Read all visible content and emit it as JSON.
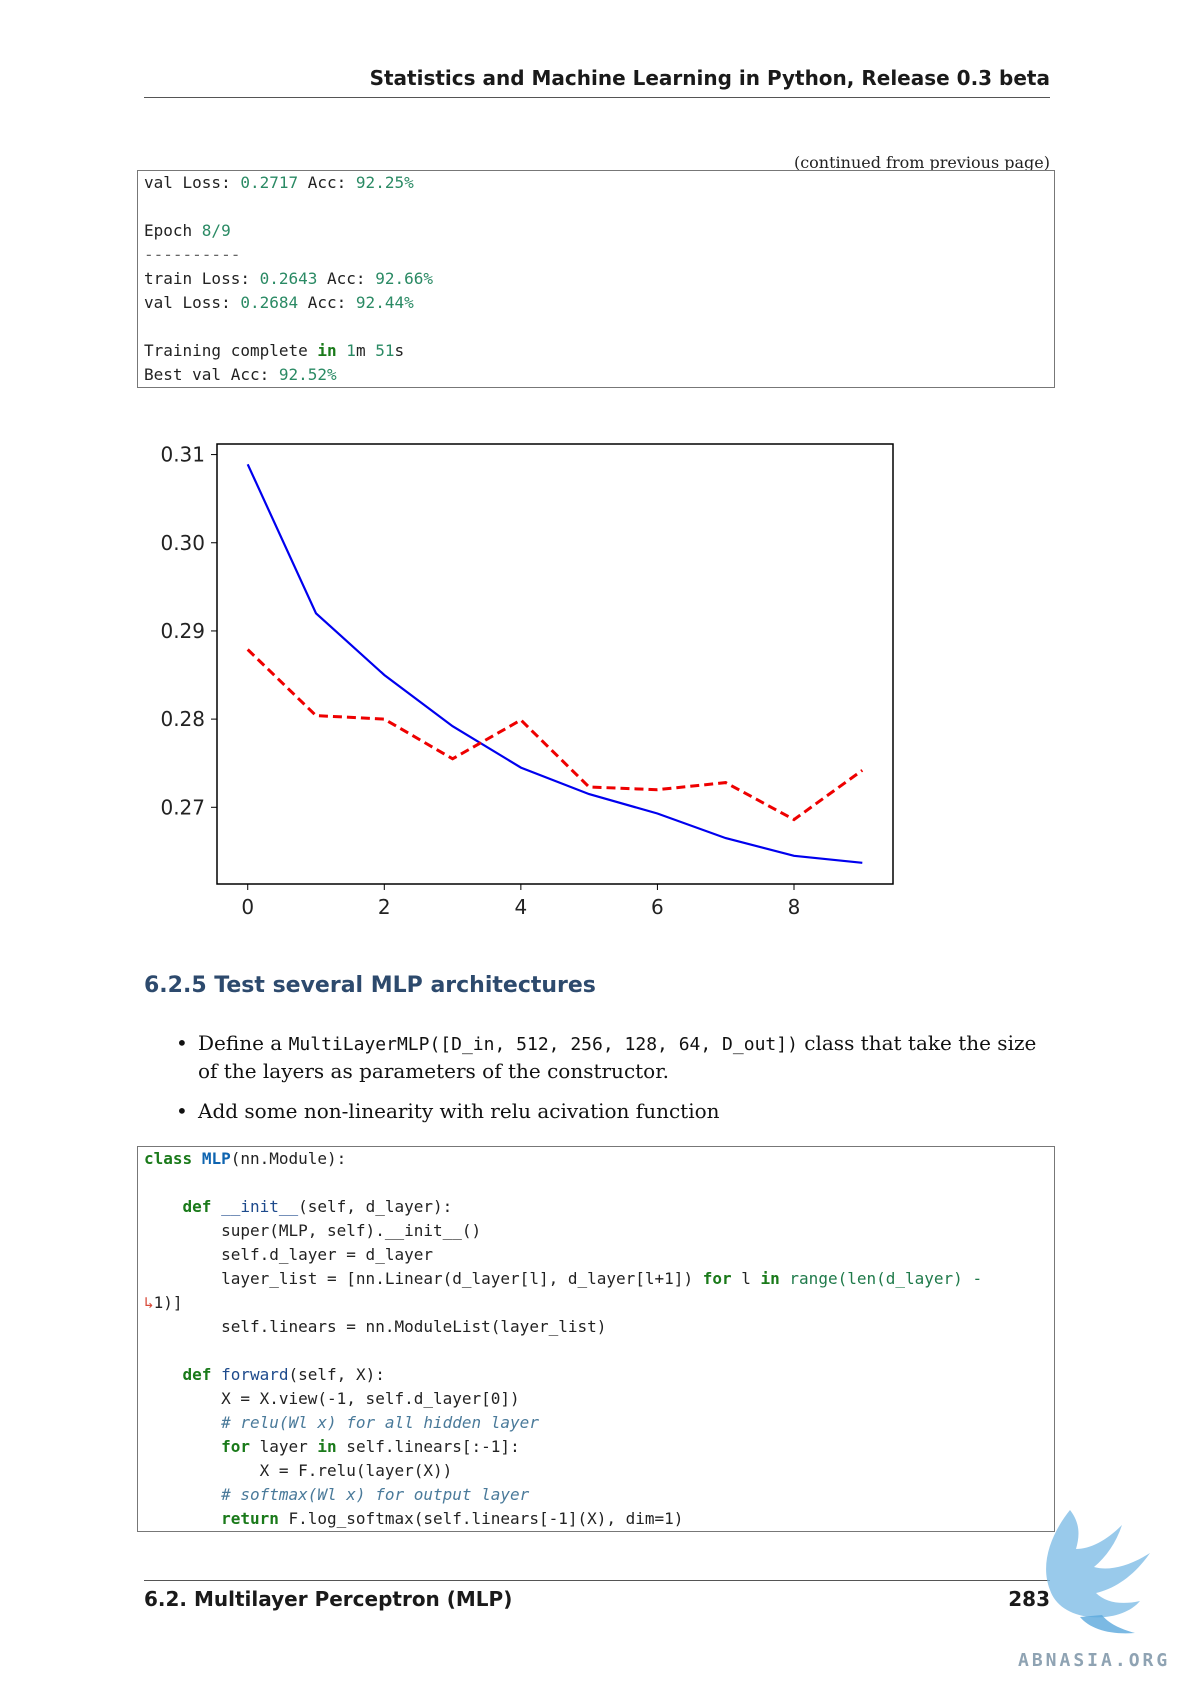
{
  "header": {
    "title": "Statistics and Machine Learning in Python, Release 0.3 beta"
  },
  "continued": "(continued from previous page)",
  "output": {
    "val1_label": "val Loss: ",
    "val1_loss": "0.2717",
    "val1_acc_label": " Acc: ",
    "val1_acc": "92.25%",
    "epoch_label": "Epoch ",
    "epoch_value": "8/9",
    "dashes": "----------",
    "train_label": "train Loss: ",
    "train_loss": "0.2643",
    "train_acc_label": " Acc: ",
    "train_acc": "92.66%",
    "val2_label": "val Loss: ",
    "val2_loss": "0.2684",
    "val2_acc_label": " Acc: ",
    "val2_acc": "92.44%",
    "complete_pre": "Training complete ",
    "complete_in": "in",
    "complete_num1": "1",
    "complete_m": "m ",
    "complete_num2": "51",
    "complete_s": "s",
    "best_label": "Best val Acc: ",
    "best_value": "92.52%"
  },
  "chart_data": {
    "type": "line",
    "xlim": [
      -0.45,
      9.45
    ],
    "ylim": [
      0.2613,
      0.3112
    ],
    "xticks": [
      "0",
      "2",
      "4",
      "6",
      "8"
    ],
    "yticks": [
      "0.27",
      "0.28",
      "0.29",
      "0.30",
      "0.31"
    ],
    "grid": false,
    "series": [
      {
        "color": "#0000ee",
        "style": "solid",
        "x": [
          0,
          1,
          2,
          3,
          4,
          5,
          6,
          7,
          8,
          9
        ],
        "y": [
          0.3089,
          0.292,
          0.285,
          0.2792,
          0.2745,
          0.2715,
          0.2693,
          0.2665,
          0.2645,
          0.2637
        ]
      },
      {
        "color": "#ee0000",
        "style": "dashed",
        "x": [
          0,
          1,
          2,
          3,
          4,
          5,
          6,
          7,
          8,
          9
        ],
        "y": [
          0.2879,
          0.2804,
          0.28,
          0.2755,
          0.2799,
          0.2723,
          0.272,
          0.2728,
          0.2686,
          0.2742
        ]
      }
    ]
  },
  "section": {
    "title": "6.2.5  Test several MLP architectures"
  },
  "bullets": {
    "b1_pre": "Define a ",
    "b1_code": "MultiLayerMLP([D_in, 512, 256, 128, 64, D_out])",
    "b1_post": " class that take the size of the layers as parameters of the constructor.",
    "b2": "Add some non-linearity with relu acivation function"
  },
  "code": {
    "kw_class": "class",
    "cls_name": "MLP",
    "base": "(nn.Module):",
    "kw_def": "def",
    "init_name": "__init__",
    "init_args": "(self, d_layer):",
    "super_line": "super(MLP, self).__init__()",
    "dlayer_line": "self.d_layer = d_layer",
    "layerlist_pre": "layer_list = [nn.Linear(d_layer[l], d_layer[l+1]) ",
    "kw_for": "for",
    "l_var": " l ",
    "kw_in": "in",
    "range_part": " range(len(d_layer) -",
    "cont_mark": "↳",
    "cont_rest": "1)]",
    "linears_line": "self.linears = nn.ModuleList(layer_list)",
    "kw_def2": "def",
    "forward_name": "forward",
    "forward_args": "(self, X):",
    "view_line": "X = X.view(-1, self.d_layer[0])",
    "comment1": "# relu(Wl x) for all hidden layer",
    "kw_for2": "for",
    "layer_var": " layer ",
    "kw_in2": "in",
    "loop_rest": " self.linears[:-1]:",
    "relu_line": "X = F.relu(layer(X))",
    "comment2": "# softmax(Wl x) for output layer",
    "kw_return": "return",
    "return_rest": " F.log_softmax(self.linears[-1](X), dim=1)"
  },
  "footer": {
    "section": "6.2.  Multilayer Perceptron (MLP)",
    "page": "283"
  },
  "watermark": {
    "text": "ABNASIA.ORG"
  }
}
